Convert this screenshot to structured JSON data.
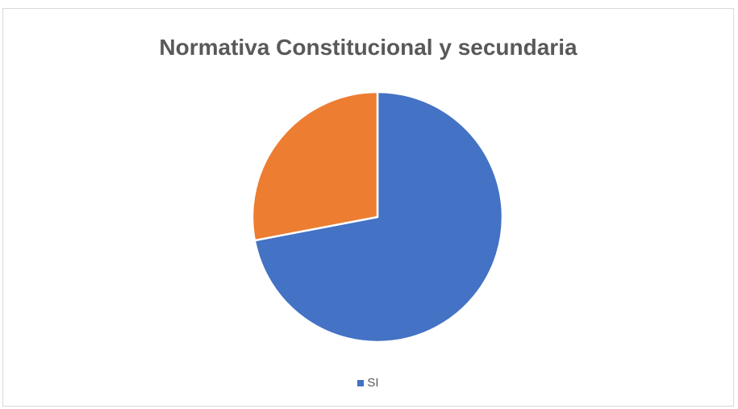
{
  "chart_data": {
    "type": "pie",
    "title": "Normativa Constitucional y secundaria",
    "slices": [
      {
        "label": "SI",
        "value": 72,
        "color": "#4472C4"
      },
      {
        "label": "",
        "value": 28,
        "color": "#ED7D31"
      }
    ],
    "legend": {
      "position": "bottom",
      "entries": [
        {
          "label": "SI",
          "color": "#4472C4"
        }
      ]
    }
  }
}
